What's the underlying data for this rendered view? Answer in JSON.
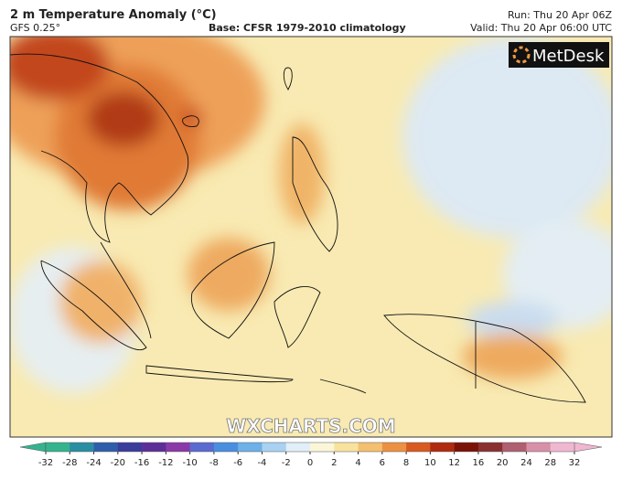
{
  "header": {
    "title": "2 m Temperature Anomaly (°C)",
    "model": "GFS 0.25°",
    "base": "Base: CFSR 1979-2010 climatology",
    "run": "Run: Thu 20 Apr 06Z",
    "valid": "Valid: Thu 20 Apr 06:00 UTC"
  },
  "logo": "MetDesk",
  "watermark": "WXCHARTS.COM",
  "colorbar": {
    "ticks": [
      -32,
      -28,
      -24,
      -20,
      -16,
      -12,
      -10,
      -8,
      -6,
      -4,
      -2,
      0,
      2,
      4,
      6,
      8,
      10,
      12,
      16,
      20,
      24,
      28,
      32
    ],
    "colors": [
      "#34b48e",
      "#2a8ea2",
      "#2e5eaa",
      "#3a3c9c",
      "#5c2e98",
      "#8a3aa6",
      "#5a6ad0",
      "#4a8ee0",
      "#6eb0e8",
      "#a9d1f1",
      "#e2eff8",
      "#fbf6d8",
      "#f8e39e",
      "#f4c070",
      "#ec9142",
      "#d85a20",
      "#b02a10",
      "#7a1208",
      "#8a3030",
      "#b06070",
      "#d890a8",
      "#f0b8d0"
    ]
  }
}
